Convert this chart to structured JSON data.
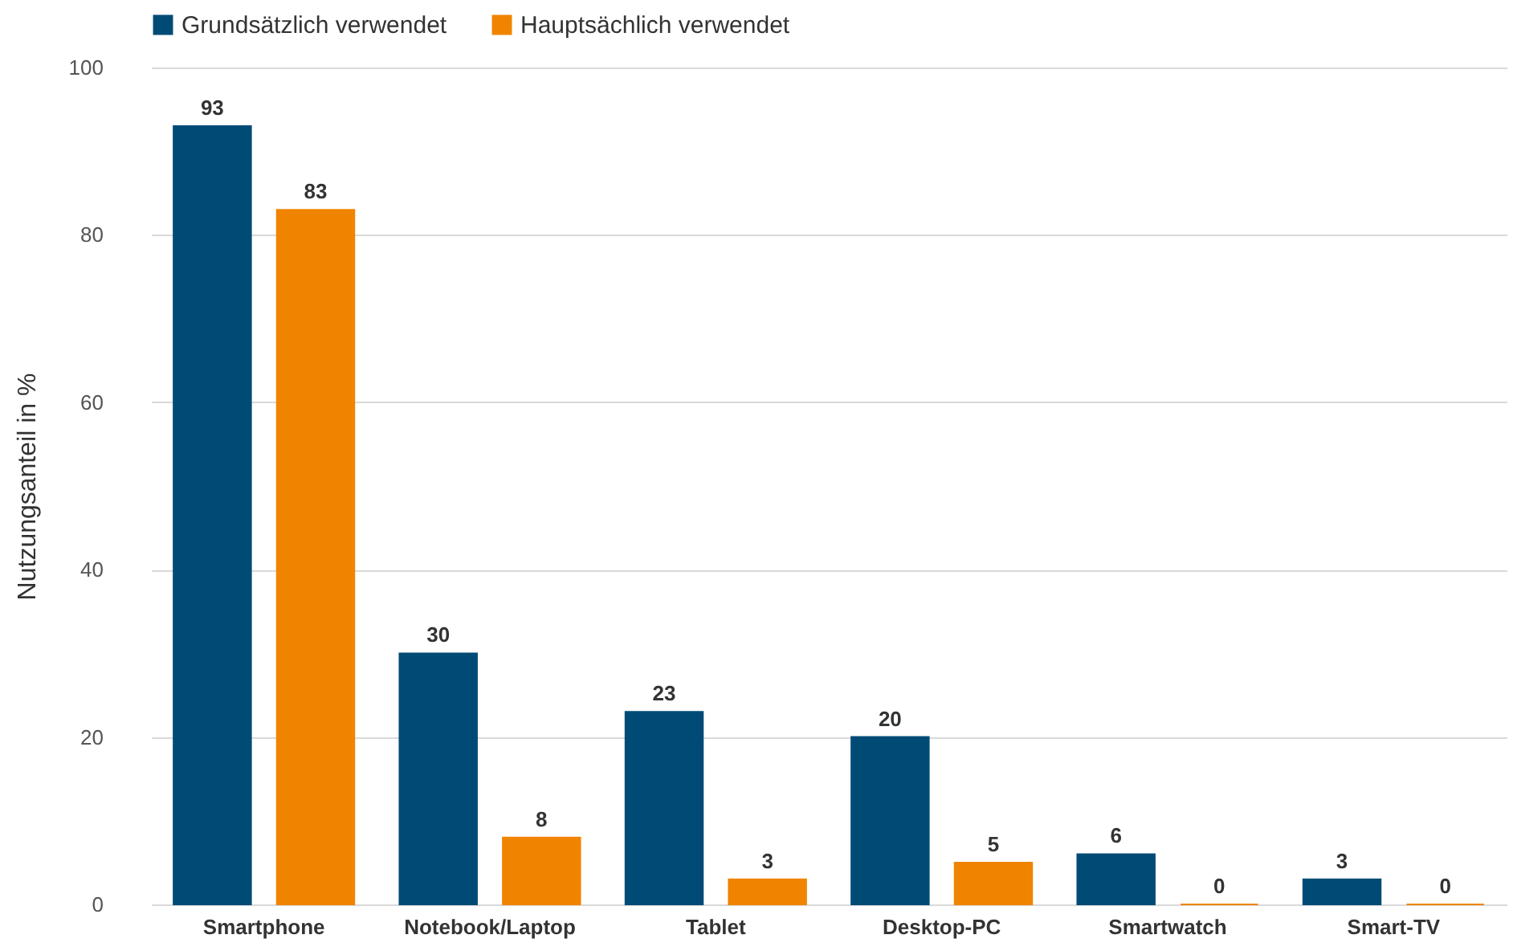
{
  "chart_data": {
    "type": "bar",
    "ylabel": "Nutzungsanteil in %",
    "categories": [
      "Smartphone",
      "Notebook/Laptop",
      "Tablet",
      "Desktop-PC",
      "Smartwatch",
      "Smart-TV"
    ],
    "series": [
      {
        "name": "Grundsätzlich verwendet",
        "color": "#004b76",
        "values": [
          93,
          30,
          23,
          20,
          6,
          3
        ]
      },
      {
        "name": "Hauptsächlich verwendet",
        "color": "#f08400",
        "values": [
          83,
          8,
          3,
          5,
          0,
          0
        ]
      }
    ],
    "ylim": [
      0,
      100
    ],
    "yticks": [
      0,
      20,
      40,
      60,
      80,
      100
    ],
    "grid": "y",
    "legend": "top",
    "data_labels": true
  }
}
